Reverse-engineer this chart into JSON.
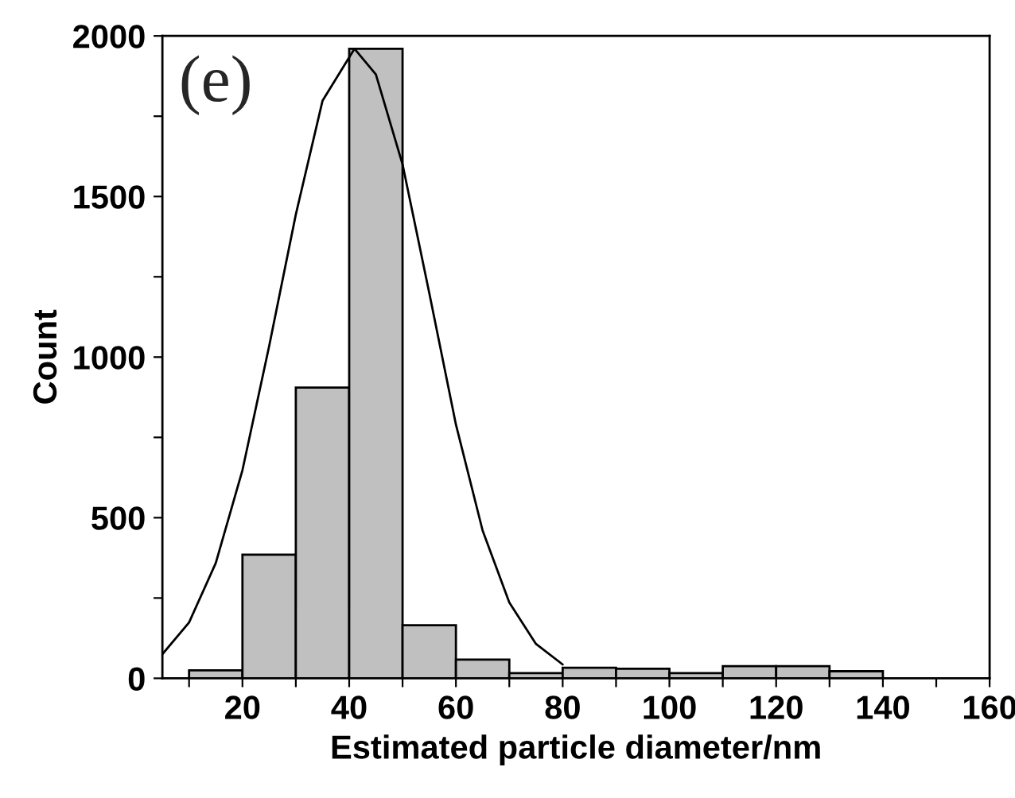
{
  "chart_data": {
    "type": "histogram",
    "xlabel": "Estimated particle diameter/nm",
    "ylabel": "Count",
    "annotations": [
      "(e)"
    ],
    "xlim": [
      5,
      160
    ],
    "ylim": [
      0,
      2000
    ],
    "xticks": [
      {
        "value": 10,
        "label": null
      },
      20,
      {
        "value": 30,
        "label": null
      },
      40,
      {
        "value": 50,
        "label": null
      },
      60,
      {
        "value": 70,
        "label": null
      },
      80,
      {
        "value": 90,
        "label": null
      },
      100,
      {
        "value": 110,
        "label": null
      },
      120,
      {
        "value": 130,
        "label": null
      },
      140,
      {
        "value": 150,
        "label": null
      },
      160
    ],
    "yticks": [
      0,
      {
        "value": 250,
        "label": null
      },
      500,
      {
        "value": 750,
        "label": null
      },
      1000,
      {
        "value": 1250,
        "label": null
      },
      1500,
      {
        "value": 1750,
        "label": null
      },
      2000
    ],
    "grid": false,
    "series": [
      {
        "color": "#c0c0c0",
        "bins": [
          10,
          20,
          30,
          40,
          50,
          60,
          70,
          80,
          90,
          100,
          110,
          120,
          130,
          140
        ],
        "values": [
          25,
          385,
          905,
          1960,
          165,
          58,
          16,
          33,
          30,
          16,
          38,
          38,
          22
        ]
      },
      {
        "type": "line",
        "color": "#000000",
        "x": [
          5,
          10,
          15,
          20,
          25,
          30,
          35,
          41,
          45,
          50,
          55,
          60,
          65,
          70,
          75,
          80
        ],
        "values": [
          75,
          174,
          359,
          648,
          1034,
          1444,
          1798,
          1960,
          1880,
          1600,
          1200,
          790,
          460,
          236,
          107,
          43
        ]
      }
    ]
  }
}
